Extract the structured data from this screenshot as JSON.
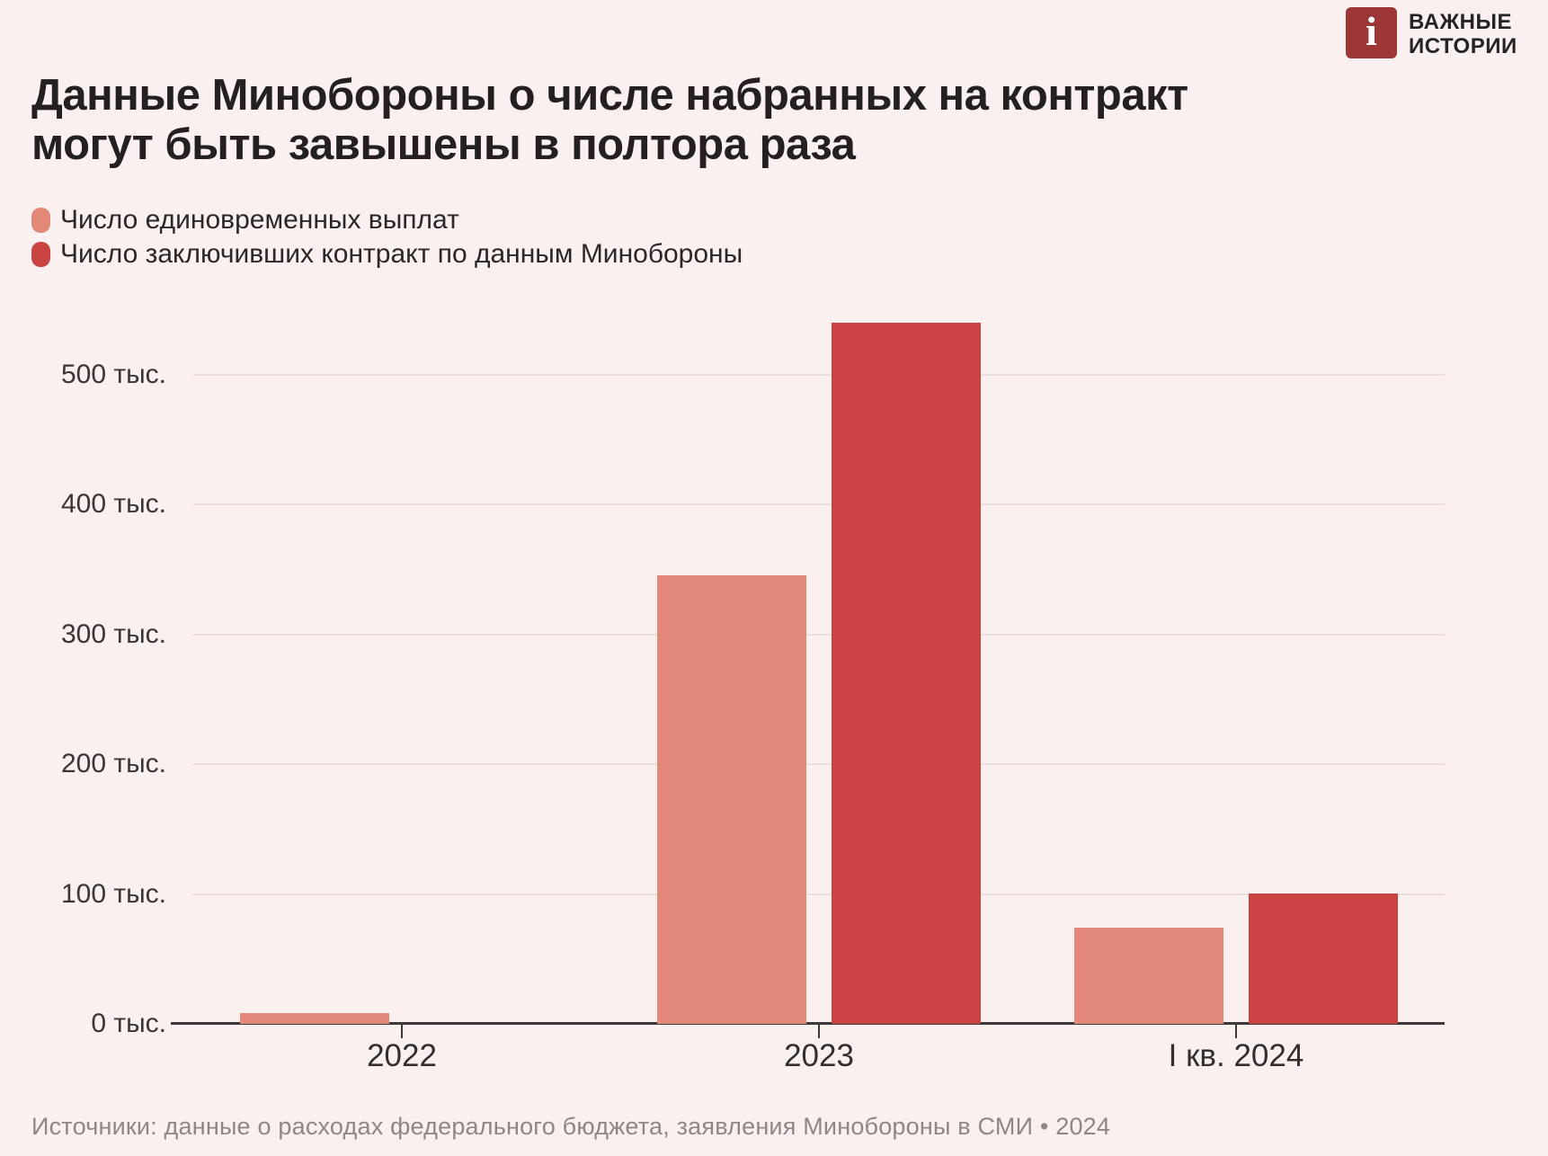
{
  "brand": {
    "icon_glyph": "i",
    "line1": "ВАЖНЫЕ",
    "line2": "ИСТОРИИ",
    "icon_color": "#9d3636"
  },
  "title": {
    "line1": "Данные Минобороны о числе набранных на контракт",
    "line2": "могут быть завышены в полтора раза"
  },
  "legend": {
    "items": [
      {
        "label": "Число единовременных выплат",
        "color": "#e18878"
      },
      {
        "label": "Число заключивших контракт по данным Минобороны",
        "color": "#ca4343"
      }
    ]
  },
  "chart_data": {
    "type": "bar",
    "title": "Данные Минобороны о числе набранных на контракт могут быть завышены в полтора раза",
    "categories": [
      "2022",
      "2023",
      "I кв. 2024"
    ],
    "series": [
      {
        "name": "Число единовременных выплат",
        "color": "#e18878",
        "values": [
          8,
          345,
          74
        ]
      },
      {
        "name": "Число заключивших контракт по данным Минобороны",
        "color": "#ca4343",
        "values": [
          null,
          540,
          100
        ]
      }
    ],
    "unit": "тыс.",
    "yticks": [
      0,
      100,
      200,
      300,
      400,
      500
    ],
    "ytick_labels": [
      "0 тыс.",
      "100 тыс.",
      "200 тыс.",
      "300 тыс.",
      "400 тыс.",
      "500 тыс."
    ],
    "ylim": [
      0,
      560
    ],
    "grid": "horizontal",
    "legend_position": "top-left"
  },
  "source": "Источники: данные о расходах федерального бюджета, заявления Минобороны в СМИ • 2024",
  "colors": {
    "background": "#faf0ef",
    "grid": "#eadfdc",
    "axis": "#3e3a39",
    "brand": "#9d3636",
    "series_payments": "#e18878",
    "series_mod_contracts": "#ca4343"
  }
}
